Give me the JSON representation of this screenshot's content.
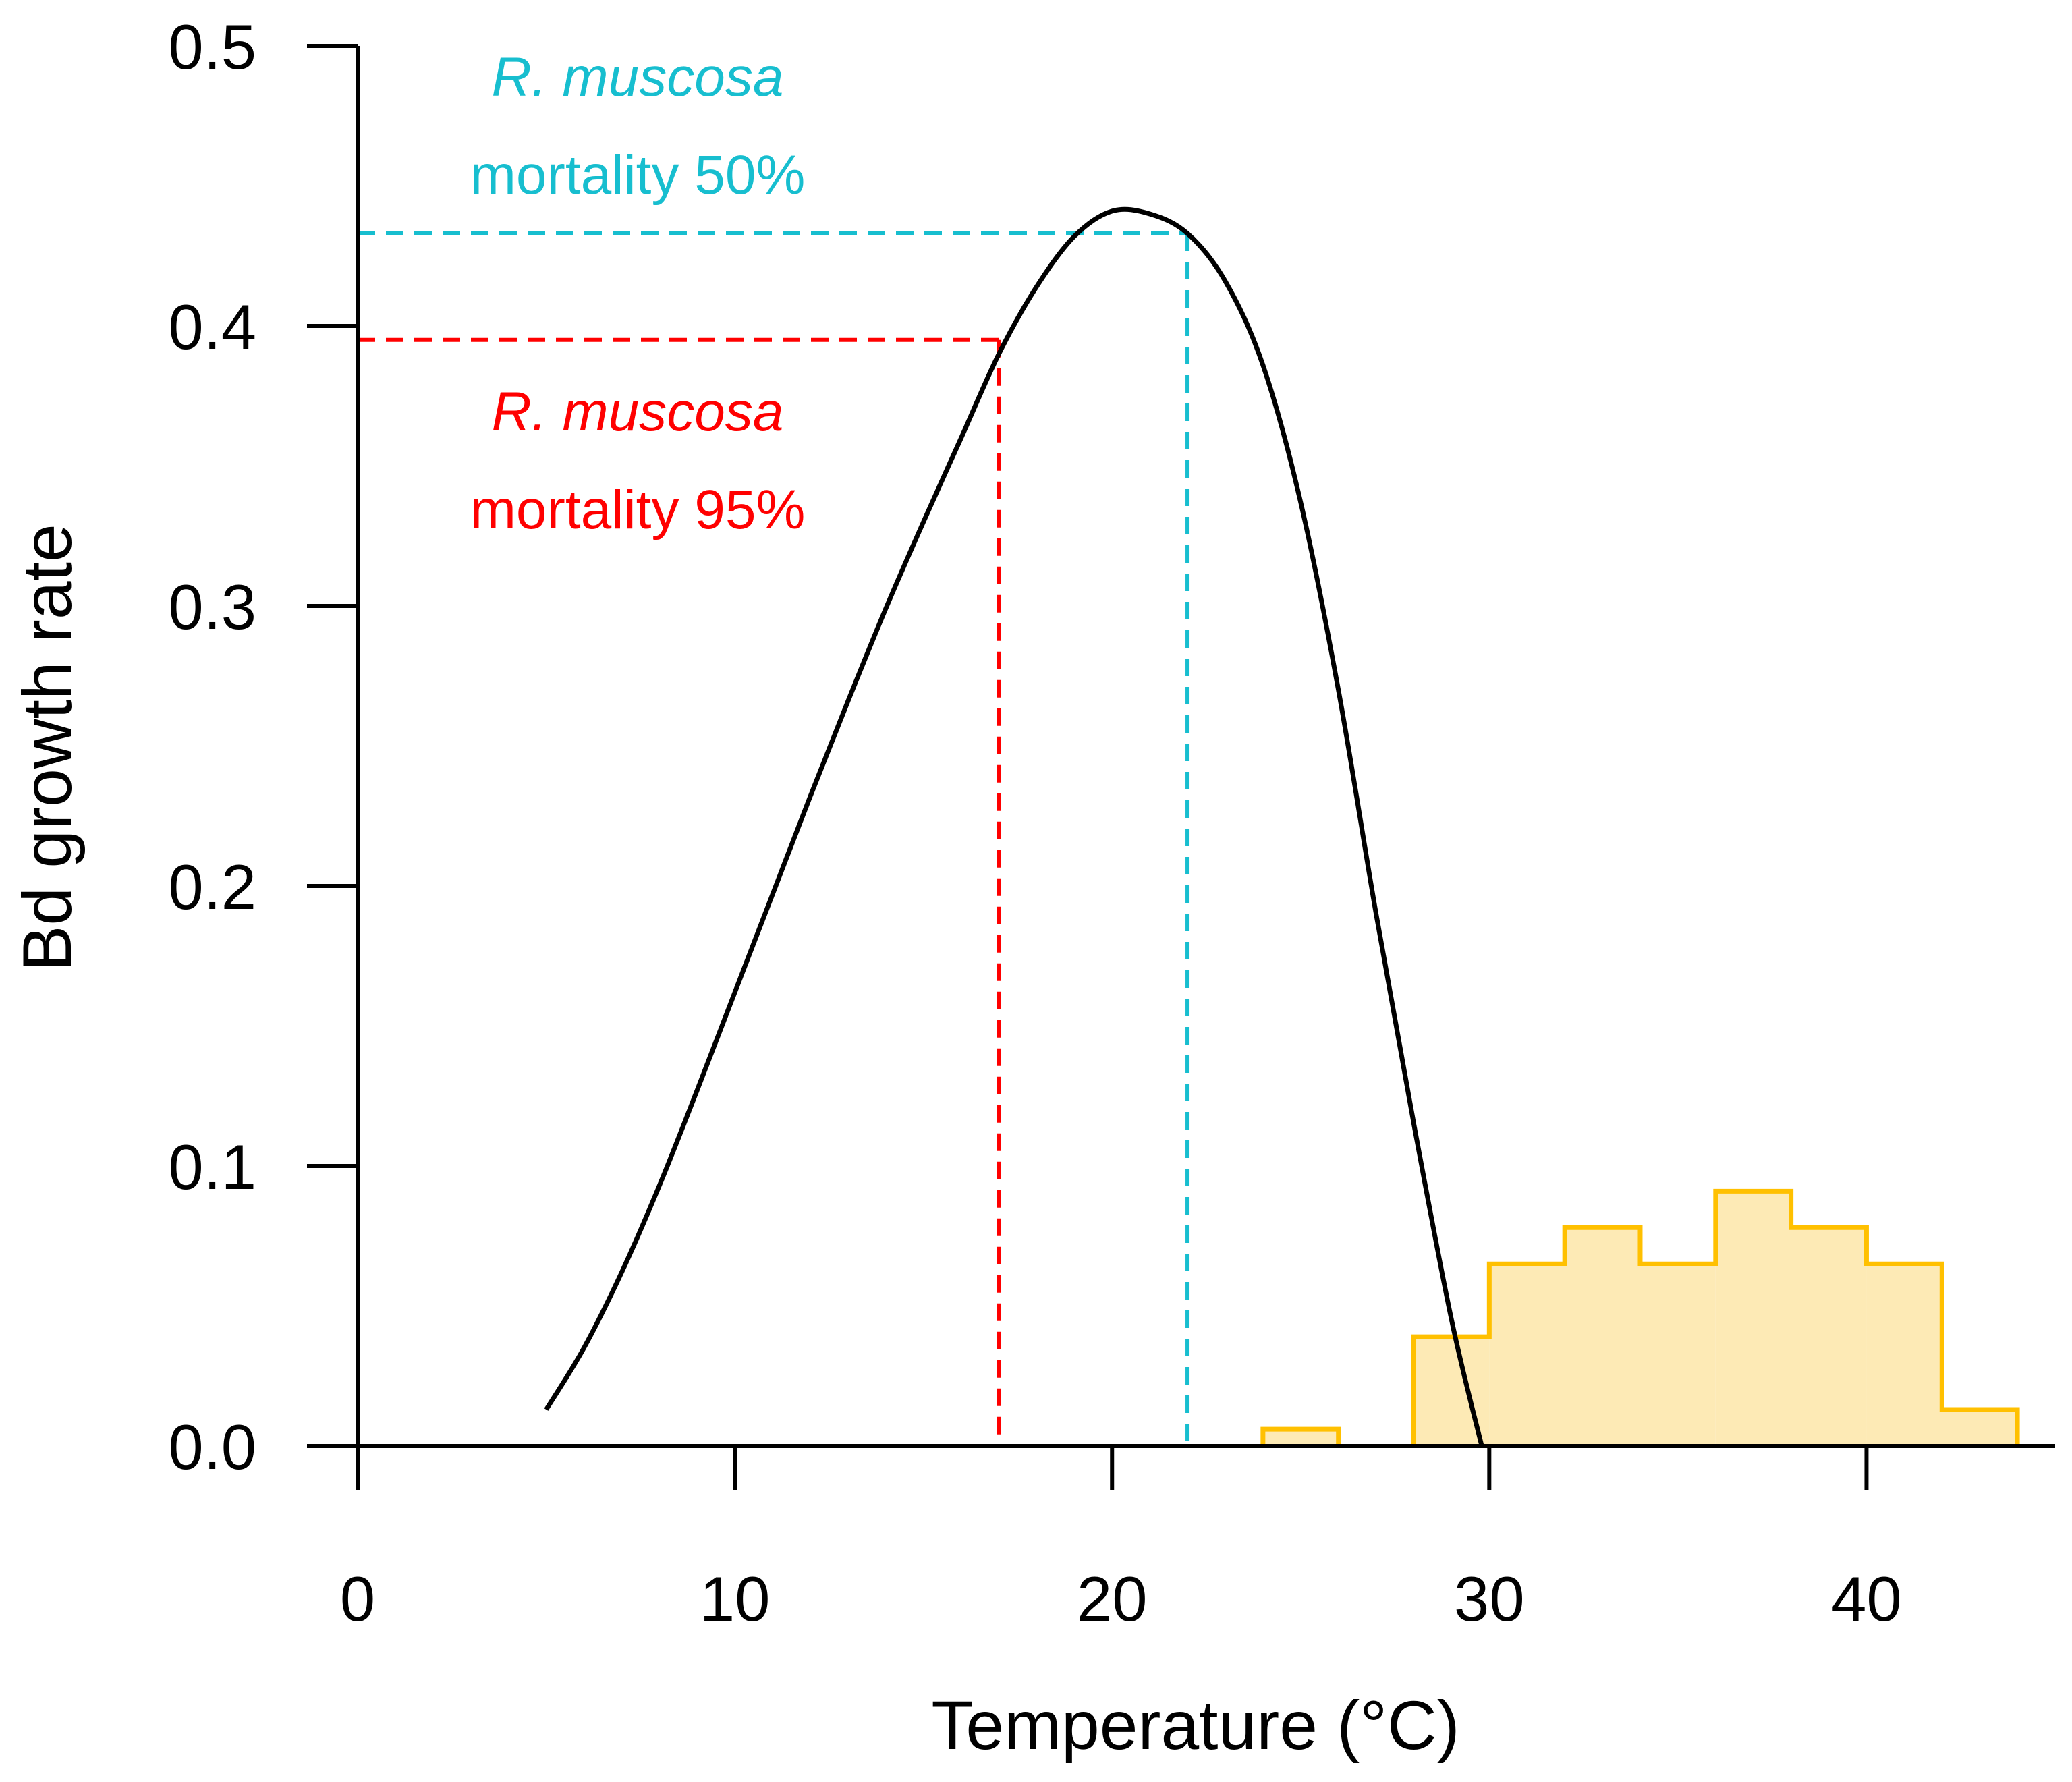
{
  "chart_data": {
    "type": "line",
    "title": "",
    "xlabel": "Temperature (°C)",
    "ylabel": "Bd growth rate",
    "xlim": [
      0,
      45
    ],
    "ylim": [
      0,
      0.5
    ],
    "x_ticks": [
      {
        "value": 0,
        "label": "0"
      },
      {
        "value": 10,
        "label": "10"
      },
      {
        "value": 20,
        "label": "20"
      },
      {
        "value": 30,
        "label": "30"
      },
      {
        "value": 40,
        "label": "40"
      }
    ],
    "y_ticks": [
      {
        "value": 0.0,
        "label": "0.0"
      },
      {
        "value": 0.1,
        "label": "0.1"
      },
      {
        "value": 0.2,
        "label": "0.2"
      },
      {
        "value": 0.3,
        "label": "0.3"
      },
      {
        "value": 0.4,
        "label": "0.4"
      },
      {
        "value": 0.5,
        "label": "0.5"
      }
    ],
    "grid": false,
    "legend": "none",
    "growth_curve": {
      "color": "#000000",
      "points": [
        [
          5,
          0.013
        ],
        [
          6,
          0.035
        ],
        [
          7,
          0.062
        ],
        [
          8,
          0.093
        ],
        [
          9,
          0.127
        ],
        [
          10,
          0.162
        ],
        [
          11,
          0.197
        ],
        [
          12,
          0.232
        ],
        [
          13,
          0.266
        ],
        [
          14,
          0.299
        ],
        [
          15,
          0.33
        ],
        [
          16,
          0.36
        ],
        [
          17,
          0.39
        ],
        [
          18,
          0.414
        ],
        [
          19,
          0.432
        ],
        [
          20,
          0.441
        ],
        [
          21,
          0.44
        ],
        [
          22,
          0.433
        ],
        [
          23,
          0.416
        ],
        [
          24,
          0.386
        ],
        [
          25,
          0.337
        ],
        [
          26,
          0.27
        ],
        [
          27,
          0.19
        ],
        [
          28,
          0.115
        ],
        [
          29,
          0.045
        ],
        [
          29.8,
          0.0
        ]
      ]
    },
    "histogram": {
      "stroke": "#ffc000",
      "fill": "#fdeab5",
      "bins": [
        {
          "x0": 24,
          "x1": 26,
          "value": 0.006
        },
        {
          "x0": 26,
          "x1": 28,
          "value": 0.0
        },
        {
          "x0": 28,
          "x1": 30,
          "value": 0.039
        },
        {
          "x0": 30,
          "x1": 32,
          "value": 0.065
        },
        {
          "x0": 32,
          "x1": 34,
          "value": 0.078
        },
        {
          "x0": 34,
          "x1": 36,
          "value": 0.065
        },
        {
          "x0": 36,
          "x1": 38,
          "value": 0.091
        },
        {
          "x0": 38,
          "x1": 40,
          "value": 0.078
        },
        {
          "x0": 40,
          "x1": 42,
          "value": 0.065
        },
        {
          "x0": 42,
          "x1": 44,
          "value": 0.013
        }
      ]
    },
    "reference_lines": [
      {
        "name": "mortality-50",
        "color": "#17becf",
        "x": 22,
        "y": 0.433
      },
      {
        "name": "mortality-95",
        "color": "#ff0000",
        "x": 17,
        "y": 0.395
      }
    ],
    "annotations": {
      "mortality_50": {
        "species": "R. muscosa",
        "text": "mortality 50%",
        "color": "#17becf"
      },
      "mortality_95": {
        "species": "R. muscosa",
        "text": "mortality 95%",
        "color": "#ff0000"
      }
    }
  }
}
